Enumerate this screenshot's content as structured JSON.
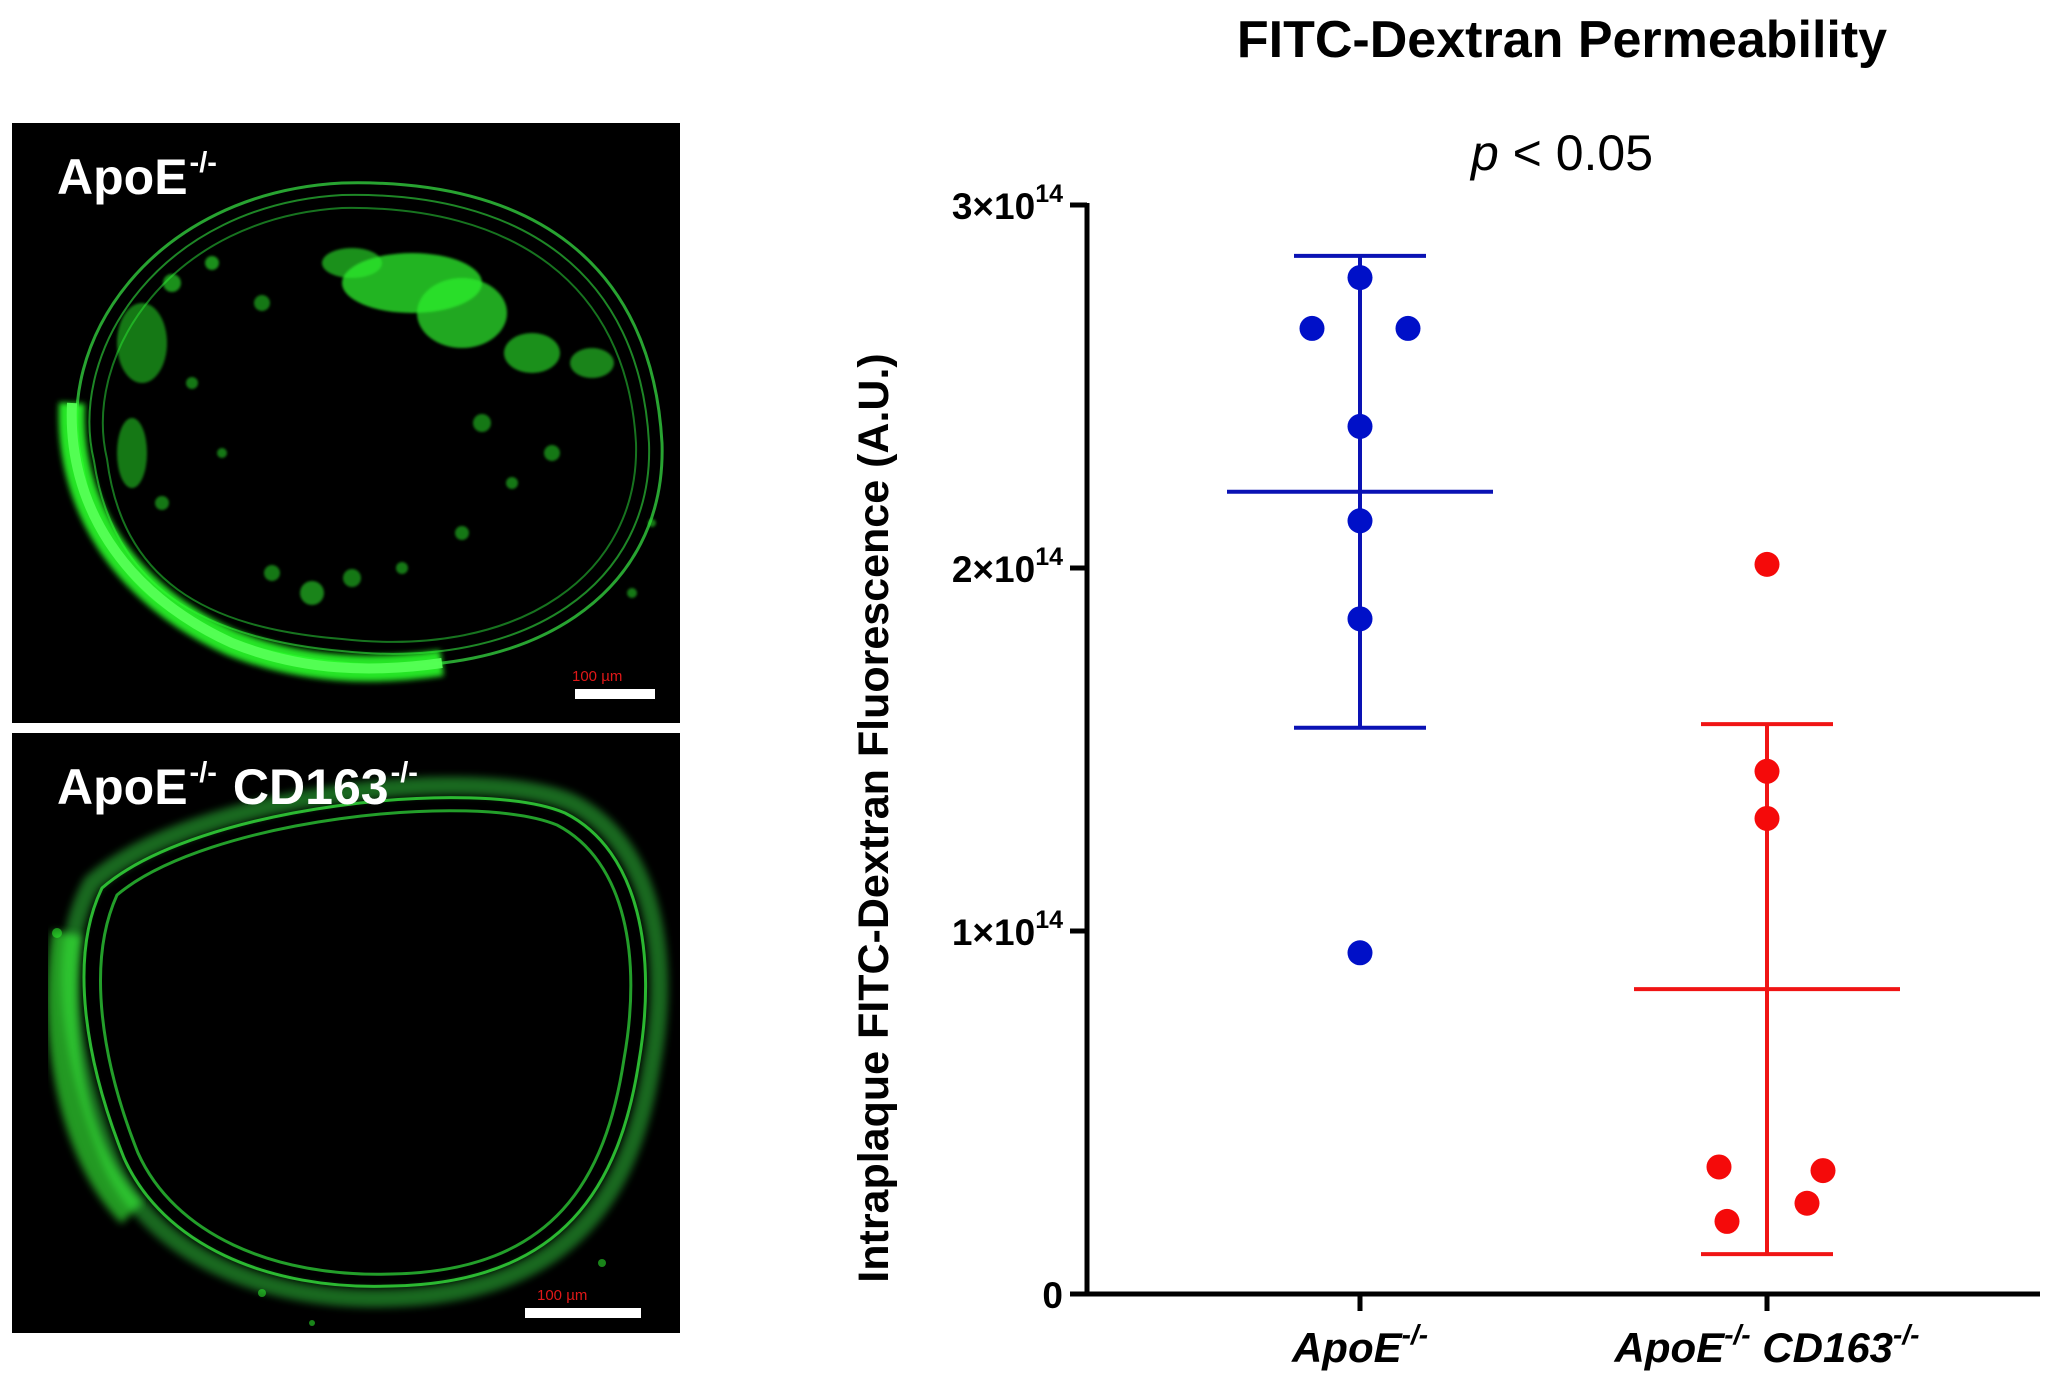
{
  "images": [
    {
      "label_main": "ApoE",
      "label_sup": "-/-",
      "label_second": "",
      "label_second_sup": "",
      "scale_text": "100 µm"
    },
    {
      "label_main": "ApoE",
      "label_sup": "-/-",
      "label_second": "CD163",
      "label_second_sup": "-/-",
      "scale_text": "100 µm"
    }
  ],
  "chart_data": {
    "type": "scatter",
    "title": "FITC-Dextran Permeability",
    "subtitle_italic": "p",
    "subtitle_rest": " < 0.05",
    "ylabel": "Intraplaque FITC-Dextran Fluorescence (A.U.)",
    "ylim": [
      0,
      300000000000000.0
    ],
    "yticks": [
      {
        "value": 0,
        "label": "0",
        "exp": ""
      },
      {
        "value": 100000000000000.0,
        "label": "1×10",
        "exp": "14"
      },
      {
        "value": 200000000000000.0,
        "label": "2×10",
        "exp": "14"
      },
      {
        "value": 300000000000000.0,
        "label": "3×10",
        "exp": "14"
      }
    ],
    "categories": [
      {
        "main": "ApoE",
        "sup": "-/-",
        "second": "",
        "second_sup": ""
      },
      {
        "main": "ApoE",
        "sup": "-/-",
        "second": " CD163",
        "second_sup": "-/-"
      }
    ],
    "series": [
      {
        "color": "#0010c8",
        "line_color": "#0a12b4",
        "points": [
          {
            "offset": 0,
            "value": 280000000000000.0
          },
          {
            "offset": -0.12,
            "value": 266000000000000.0
          },
          {
            "offset": 0.12,
            "value": 266000000000000.0
          },
          {
            "offset": 0,
            "value": 239000000000000.0
          },
          {
            "offset": 0,
            "value": 213000000000000.0
          },
          {
            "offset": 0,
            "value": 186000000000000.0
          },
          {
            "offset": 0,
            "value": 94000000000000.0
          }
        ],
        "mean": 221000000000000.0,
        "err_low": 156000000000000.0,
        "err_high": 286000000000000.0
      },
      {
        "color": "#f50a0a",
        "line_color": "#f01414",
        "points": [
          {
            "offset": 0,
            "value": 201000000000000.0
          },
          {
            "offset": 0,
            "value": 144000000000000.0
          },
          {
            "offset": 0,
            "value": 131000000000000.0
          },
          {
            "offset": -0.12,
            "value": 35000000000000.0
          },
          {
            "offset": 0.14,
            "value": 34000000000000.0
          },
          {
            "offset": 0.1,
            "value": 25000000000000.0
          },
          {
            "offset": -0.1,
            "value": 20000000000000.0
          }
        ],
        "mean": 84000000000000.0,
        "err_low": 11000000000000.0,
        "err_high": 157000000000000.0
      }
    ]
  }
}
